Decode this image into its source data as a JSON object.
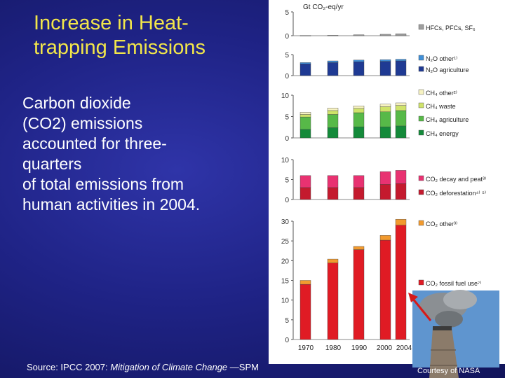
{
  "slide": {
    "title_lines": [
      "Increase in Heat-",
      "trapping Emissions"
    ],
    "body_lines": [
      "Carbon dioxide",
      "(CO2) emissions",
      "accounted for three-",
      "quarters",
      "of total emissions from",
      "human activities in 2004."
    ],
    "source_prefix": "Source: IPCC 2007: ",
    "source_title": "Mitigation of Climate Change",
    "source_suffix": " —SPM",
    "courtesy": "Courtesy of NASA",
    "photo": "smokestack-photo"
  },
  "chart_data": {
    "type": "bar",
    "unit_label": "Gt CO₂-eq/yr",
    "categories": [
      "1970",
      "1980",
      "1990",
      "2000",
      "2004"
    ],
    "panels": [
      {
        "id": "f-gases",
        "ylim": [
          0,
          5
        ],
        "ticks": [
          "5",
          "0"
        ],
        "series": [
          {
            "name": "HFCs, PFCs, SF₆",
            "color": "#9e9e9e",
            "values": [
              0.05,
              0.1,
              0.2,
              0.3,
              0.4
            ]
          }
        ]
      },
      {
        "id": "n2o",
        "ylim": [
          0,
          5
        ],
        "ticks": [
          "5",
          "0"
        ],
        "series": [
          {
            "name": "N₂O agriculture",
            "color": "#1f3a93",
            "values": [
              2.8,
              3.1,
              3.3,
              3.4,
              3.5
            ]
          },
          {
            "name": "N₂O other¹⁾",
            "color": "#3f8fd8",
            "values": [
              0.3,
              0.4,
              0.4,
              0.4,
              0.4
            ]
          }
        ]
      },
      {
        "id": "ch4",
        "ylim": [
          0,
          10
        ],
        "ticks": [
          "10",
          "5",
          "0"
        ],
        "series": [
          {
            "name": "CH₄ energy",
            "color": "#148a3a",
            "values": [
              2.0,
              2.4,
              2.6,
              2.6,
              2.8
            ]
          },
          {
            "name": "CH₄ agriculture",
            "color": "#57b948",
            "values": [
              2.9,
              3.1,
              3.3,
              3.5,
              3.6
            ]
          },
          {
            "name": "CH₄ waste",
            "color": "#cfe36a",
            "values": [
              0.6,
              0.9,
              1.0,
              1.2,
              1.2
            ]
          },
          {
            "name": "CH₄ other²⁾",
            "color": "#f7f3c2",
            "values": [
              0.5,
              0.6,
              0.6,
              0.6,
              0.6
            ]
          }
        ]
      },
      {
        "id": "co2-lucf",
        "ylim": [
          0,
          10
        ],
        "ticks": [
          "10",
          "5",
          "0"
        ],
        "series": [
          {
            "name": "CO₂ deforestation⁴⁾ ⁵⁾",
            "color": "#c41a2e",
            "values": [
              3.0,
              3.0,
              3.0,
              3.8,
              4.0
            ]
          },
          {
            "name": "CO₂ decay and peat³⁾",
            "color": "#e83271",
            "values": [
              3.0,
              3.0,
              3.0,
              3.2,
              3.3
            ]
          }
        ]
      },
      {
        "id": "co2-fossil",
        "ylim": [
          0,
          30
        ],
        "ticks": [
          "30",
          "25",
          "20",
          "15",
          "10",
          "5",
          "0"
        ],
        "series": [
          {
            "name": "CO₂ fossil fuel use⁷⁾",
            "color": "#e01b24",
            "values": [
              14.0,
              19.4,
              22.8,
              25.2,
              29.0
            ]
          },
          {
            "name": "CO₂ other³⁾",
            "color": "#f29a2e",
            "values": [
              1.0,
              1.0,
              0.8,
              1.2,
              1.5
            ]
          }
        ]
      }
    ]
  }
}
